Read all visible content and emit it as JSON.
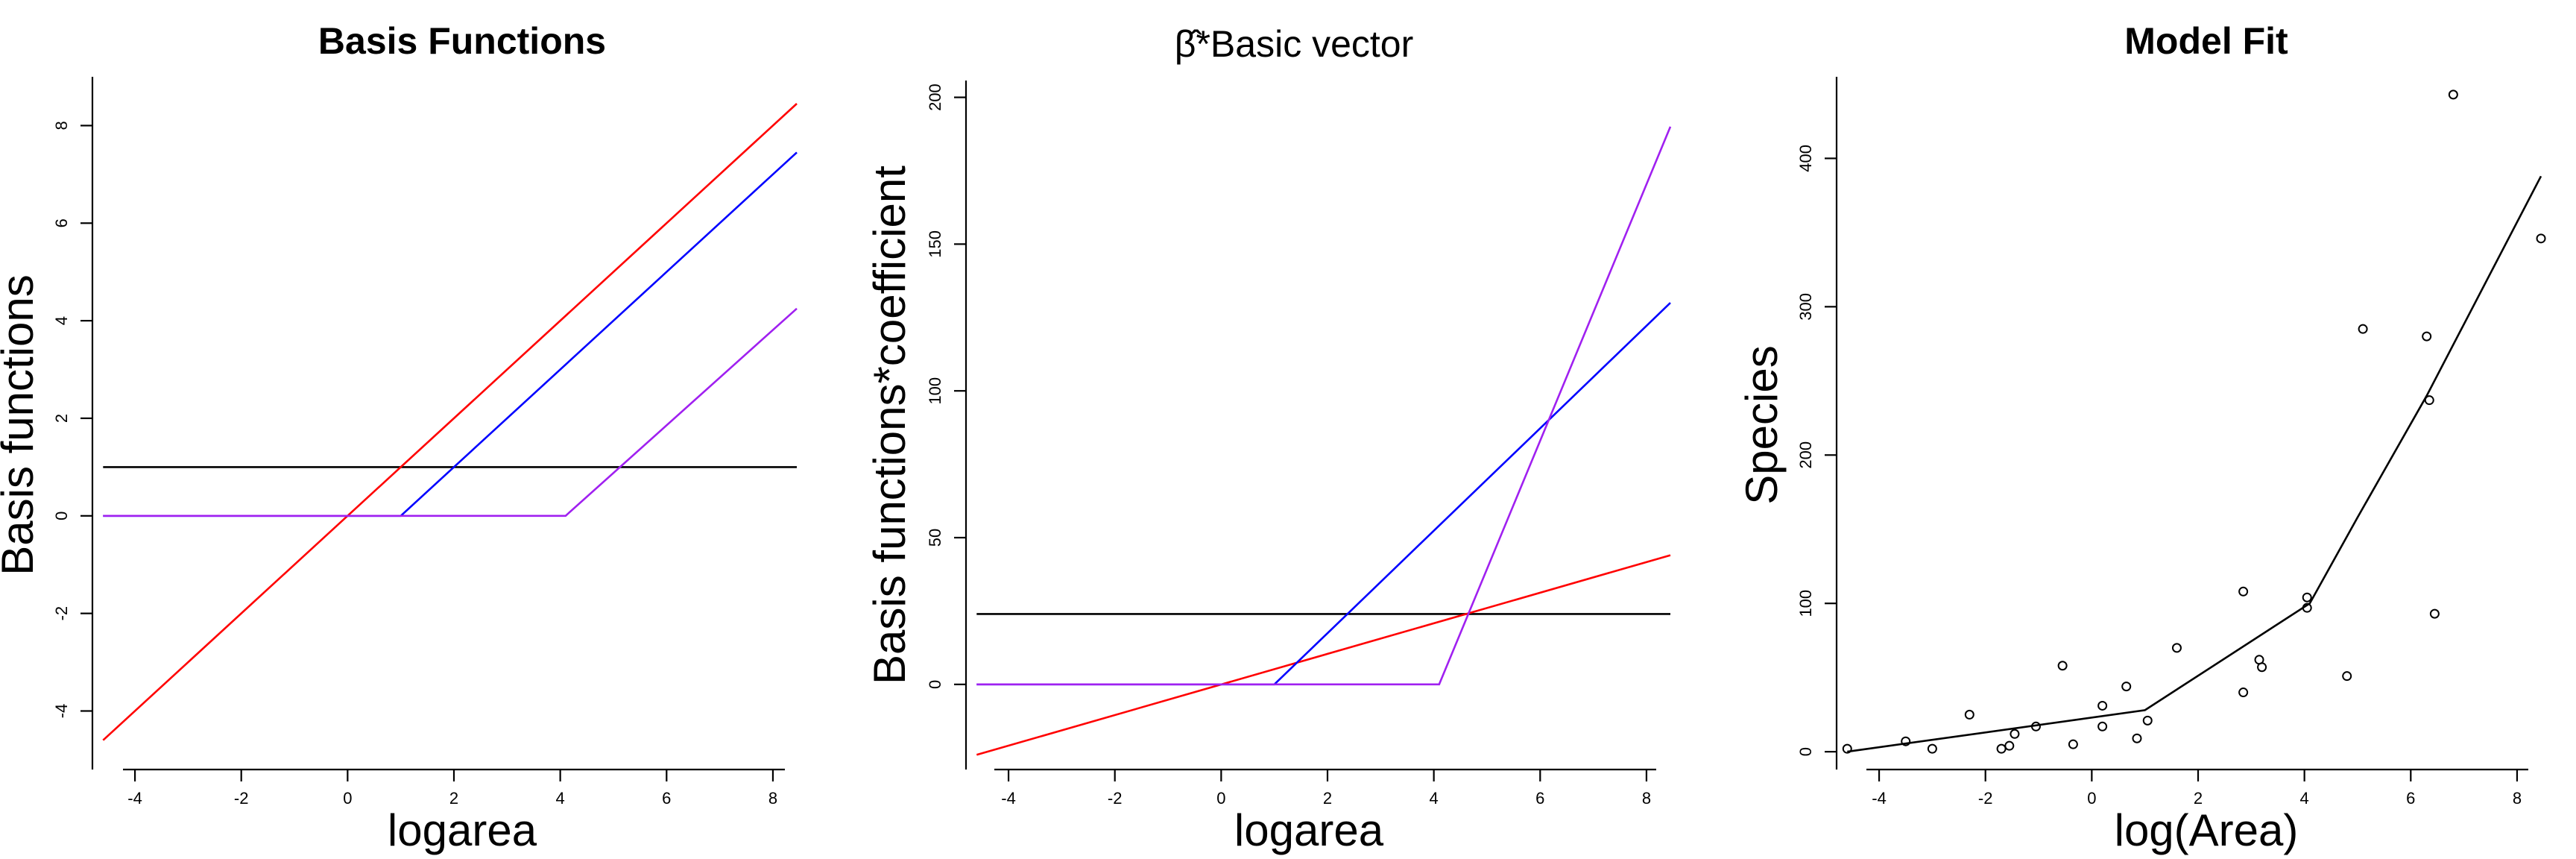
{
  "chart_data": [
    {
      "type": "line",
      "title": "Basis Functions",
      "xlabel": "logarea",
      "ylabel": "Basis functions",
      "xlim": [
        -4.8,
        8.8
      ],
      "ylim": [
        -5.2,
        9.0
      ],
      "xticks": [
        -4,
        -2,
        0,
        2,
        4,
        6,
        8
      ],
      "yticks": [
        -4,
        -2,
        0,
        2,
        4,
        6,
        8
      ],
      "grid": false,
      "series": [
        {
          "color": "#000000",
          "points": [
            [
              -4.6,
              1.0
            ],
            [
              8.45,
              1.0
            ]
          ]
        },
        {
          "color": "#ff0000",
          "points": [
            [
              -4.6,
              -4.6
            ],
            [
              8.45,
              8.45
            ]
          ]
        },
        {
          "color": "#0000ff",
          "points": [
            [
              -4.6,
              0.0
            ],
            [
              1.0,
              0.0
            ],
            [
              8.45,
              7.45
            ]
          ]
        },
        {
          "color": "#a020f0",
          "points": [
            [
              -4.6,
              0.0
            ],
            [
              4.1,
              0.0
            ],
            [
              8.45,
              4.25
            ]
          ]
        }
      ]
    },
    {
      "type": "line",
      "title": "β̂*Basic vector",
      "xlabel": "logarea",
      "ylabel": "Basis functions*coefficient",
      "xlim": [
        -4.8,
        8.8
      ],
      "ylim": [
        -29,
        207
      ],
      "xticks": [
        -4,
        -2,
        0,
        2,
        4,
        6,
        8
      ],
      "yticks": [
        0,
        50,
        100,
        150,
        200
      ],
      "grid": false,
      "series": [
        {
          "color": "#000000",
          "points": [
            [
              -4.6,
              24.0
            ],
            [
              8.45,
              24.0
            ]
          ]
        },
        {
          "color": "#ff0000",
          "points": [
            [
              -4.6,
              -24.0
            ],
            [
              8.45,
              44.0
            ]
          ]
        },
        {
          "color": "#0000ff",
          "points": [
            [
              -4.6,
              0.0
            ],
            [
              1.0,
              0.0
            ],
            [
              8.45,
              130.0
            ]
          ]
        },
        {
          "color": "#a020f0",
          "points": [
            [
              -4.6,
              0.0
            ],
            [
              4.1,
              0.0
            ],
            [
              8.45,
              190.0
            ]
          ]
        }
      ]
    },
    {
      "type": "scatter",
      "title": "Model Fit",
      "xlabel": "log(Area)",
      "ylabel": "Species",
      "xlim": [
        -4.8,
        8.8
      ],
      "ylim": [
        -12,
        455
      ],
      "xticks": [
        -4,
        -2,
        0,
        2,
        4,
        6,
        8
      ],
      "yticks": [
        0,
        100,
        200,
        300,
        400
      ],
      "grid": false,
      "points": [
        [
          -4.6,
          2
        ],
        [
          -3.5,
          7
        ],
        [
          -3.0,
          2
        ],
        [
          -2.3,
          25
        ],
        [
          -1.7,
          2
        ],
        [
          -1.55,
          4
        ],
        [
          -1.45,
          12
        ],
        [
          -1.05,
          17
        ],
        [
          -0.55,
          58
        ],
        [
          -0.35,
          5
        ],
        [
          0.2,
          31
        ],
        [
          0.2,
          17
        ],
        [
          0.65,
          44
        ],
        [
          0.85,
          9
        ],
        [
          1.05,
          21
        ],
        [
          1.6,
          70
        ],
        [
          2.85,
          108
        ],
        [
          2.85,
          40
        ],
        [
          3.15,
          62
        ],
        [
          3.2,
          57
        ],
        [
          4.05,
          104
        ],
        [
          4.05,
          97
        ],
        [
          4.8,
          51
        ],
        [
          5.1,
          285
        ],
        [
          6.3,
          280
        ],
        [
          6.35,
          237
        ],
        [
          6.45,
          93
        ],
        [
          6.8,
          443
        ],
        [
          8.45,
          346
        ]
      ],
      "fit_line": {
        "color": "#000000",
        "points": [
          [
            -4.6,
            0
          ],
          [
            1.0,
            28
          ],
          [
            4.1,
            100
          ],
          [
            5.0,
            158
          ],
          [
            6.3,
            240
          ],
          [
            8.45,
            388
          ]
        ]
      }
    }
  ]
}
